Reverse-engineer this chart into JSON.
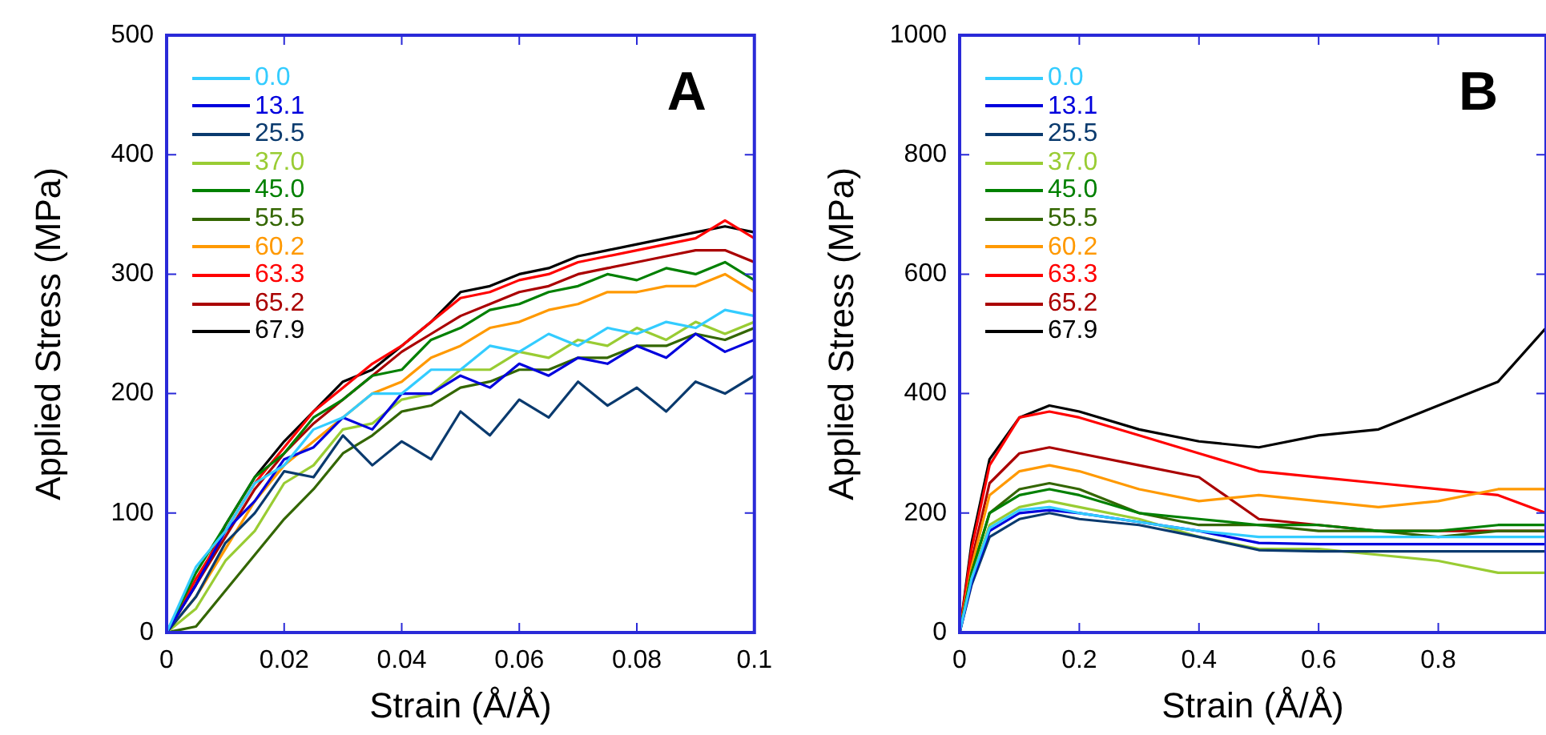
{
  "chart_data": [
    {
      "type": "line",
      "xlabel": "Strain (Å/Å)",
      "ylabel": "Applied Stress (MPa)",
      "annotations": [
        "A"
      ],
      "xlim": [
        0,
        0.1
      ],
      "xticks": [
        0,
        0.02,
        0.04,
        0.06,
        0.08,
        0.1
      ],
      "ylim": [
        0,
        500
      ],
      "yticks": [
        0,
        100,
        200,
        300,
        400,
        500
      ],
      "grid": false,
      "legend": "top left",
      "marker": "none",
      "line_style": "solid",
      "x": [
        0,
        0.005,
        0.01,
        0.015,
        0.02,
        0.025,
        0.03,
        0.035,
        0.04,
        0.045,
        0.05,
        0.055,
        0.06,
        0.065,
        0.07,
        0.075,
        0.08,
        0.085,
        0.09,
        0.095,
        0.1
      ],
      "series": [
        {
          "name": "0.0",
          "color": "#33ccff",
          "values": [
            0,
            55,
            85,
            125,
            140,
            170,
            180,
            200,
            200,
            220,
            220,
            240,
            235,
            250,
            240,
            255,
            250,
            260,
            255,
            270,
            265
          ]
        },
        {
          "name": "13.1",
          "color": "#0000dd",
          "values": [
            0,
            40,
            85,
            110,
            145,
            155,
            180,
            170,
            200,
            200,
            215,
            205,
            225,
            215,
            230,
            225,
            240,
            230,
            250,
            235,
            245
          ]
        },
        {
          "name": "25.5",
          "color": "#0a3a6e",
          "values": [
            0,
            30,
            75,
            100,
            135,
            130,
            165,
            140,
            160,
            145,
            185,
            165,
            195,
            180,
            210,
            190,
            205,
            185,
            210,
            200,
            215
          ]
        },
        {
          "name": "37.0",
          "color": "#99cc33",
          "values": [
            0,
            20,
            60,
            85,
            125,
            140,
            170,
            175,
            195,
            200,
            220,
            220,
            235,
            230,
            245,
            240,
            255,
            245,
            260,
            250,
            260
          ]
        },
        {
          "name": "45.0",
          "color": "#008000",
          "values": [
            0,
            50,
            90,
            130,
            150,
            180,
            195,
            215,
            220,
            245,
            255,
            270,
            275,
            285,
            290,
            300,
            295,
            305,
            300,
            310,
            295
          ]
        },
        {
          "name": "55.5",
          "color": "#336600",
          "values": [
            0,
            5,
            35,
            65,
            95,
            120,
            150,
            165,
            185,
            190,
            205,
            210,
            220,
            220,
            230,
            230,
            240,
            240,
            250,
            245,
            255
          ]
        },
        {
          "name": "60.2",
          "color": "#ff9900",
          "values": [
            0,
            30,
            70,
            110,
            140,
            160,
            180,
            200,
            210,
            230,
            240,
            255,
            260,
            270,
            275,
            285,
            285,
            290,
            290,
            300,
            285
          ]
        },
        {
          "name": "63.3",
          "color": "#ff0000",
          "values": [
            0,
            45,
            85,
            125,
            155,
            185,
            205,
            225,
            240,
            260,
            280,
            285,
            295,
            300,
            310,
            315,
            320,
            325,
            330,
            345,
            330
          ]
        },
        {
          "name": "65.2",
          "color": "#aa0000",
          "values": [
            0,
            40,
            80,
            120,
            150,
            175,
            195,
            215,
            235,
            250,
            265,
            275,
            285,
            290,
            300,
            305,
            310,
            315,
            320,
            320,
            310
          ]
        },
        {
          "name": "67.9",
          "color": "#000000",
          "values": [
            0,
            40,
            90,
            130,
            160,
            185,
            210,
            220,
            240,
            260,
            285,
            290,
            300,
            305,
            315,
            320,
            325,
            330,
            335,
            340,
            335
          ]
        }
      ]
    },
    {
      "type": "line",
      "xlabel": "Strain (Å/Å)",
      "ylabel": "Applied Stress (MPa)",
      "annotations": [
        "B"
      ],
      "xlim": [
        0,
        0.98
      ],
      "xticks": [
        0,
        0.2,
        0.4,
        0.6,
        0.8
      ],
      "ylim": [
        0,
        1000
      ],
      "yticks": [
        0,
        200,
        400,
        600,
        800,
        1000
      ],
      "grid": false,
      "legend": "top left",
      "marker": "none",
      "line_style": "solid",
      "x": [
        0,
        0.02,
        0.05,
        0.1,
        0.15,
        0.2,
        0.3,
        0.4,
        0.5,
        0.6,
        0.7,
        0.8,
        0.9,
        0.98
      ],
      "series": [
        {
          "name": "0.0",
          "color": "#33ccff",
          "values": [
            0,
            90,
            175,
            205,
            210,
            200,
            185,
            170,
            160,
            160,
            160,
            160,
            160,
            160
          ]
        },
        {
          "name": "13.1",
          "color": "#0000dd",
          "values": [
            0,
            85,
            170,
            200,
            205,
            200,
            185,
            170,
            150,
            148,
            148,
            148,
            148,
            148
          ]
        },
        {
          "name": "25.5",
          "color": "#0a3a6e",
          "values": [
            0,
            80,
            160,
            190,
            200,
            190,
            180,
            160,
            138,
            136,
            136,
            136,
            136,
            136
          ]
        },
        {
          "name": "37.0",
          "color": "#99cc33",
          "values": [
            0,
            90,
            180,
            210,
            220,
            210,
            190,
            160,
            140,
            140,
            130,
            120,
            100,
            100
          ]
        },
        {
          "name": "45.0",
          "color": "#008000",
          "values": [
            0,
            100,
            200,
            230,
            240,
            230,
            200,
            190,
            180,
            180,
            170,
            170,
            180,
            180
          ]
        },
        {
          "name": "55.5",
          "color": "#336600",
          "values": [
            0,
            100,
            200,
            240,
            250,
            240,
            200,
            180,
            180,
            170,
            170,
            160,
            170,
            170
          ]
        },
        {
          "name": "60.2",
          "color": "#ff9900",
          "values": [
            0,
            110,
            230,
            270,
            280,
            270,
            240,
            220,
            230,
            220,
            210,
            220,
            240,
            240
          ]
        },
        {
          "name": "63.3",
          "color": "#ff0000",
          "values": [
            0,
            140,
            280,
            360,
            370,
            360,
            330,
            300,
            270,
            260,
            250,
            240,
            230,
            200
          ]
        },
        {
          "name": "65.2",
          "color": "#aa0000",
          "values": [
            0,
            120,
            250,
            300,
            310,
            300,
            280,
            260,
            190,
            180,
            170,
            170,
            170,
            170
          ]
        },
        {
          "name": "67.9",
          "color": "#000000",
          "values": [
            0,
            150,
            290,
            360,
            380,
            370,
            340,
            320,
            310,
            330,
            340,
            380,
            420,
            510
          ]
        }
      ]
    }
  ]
}
